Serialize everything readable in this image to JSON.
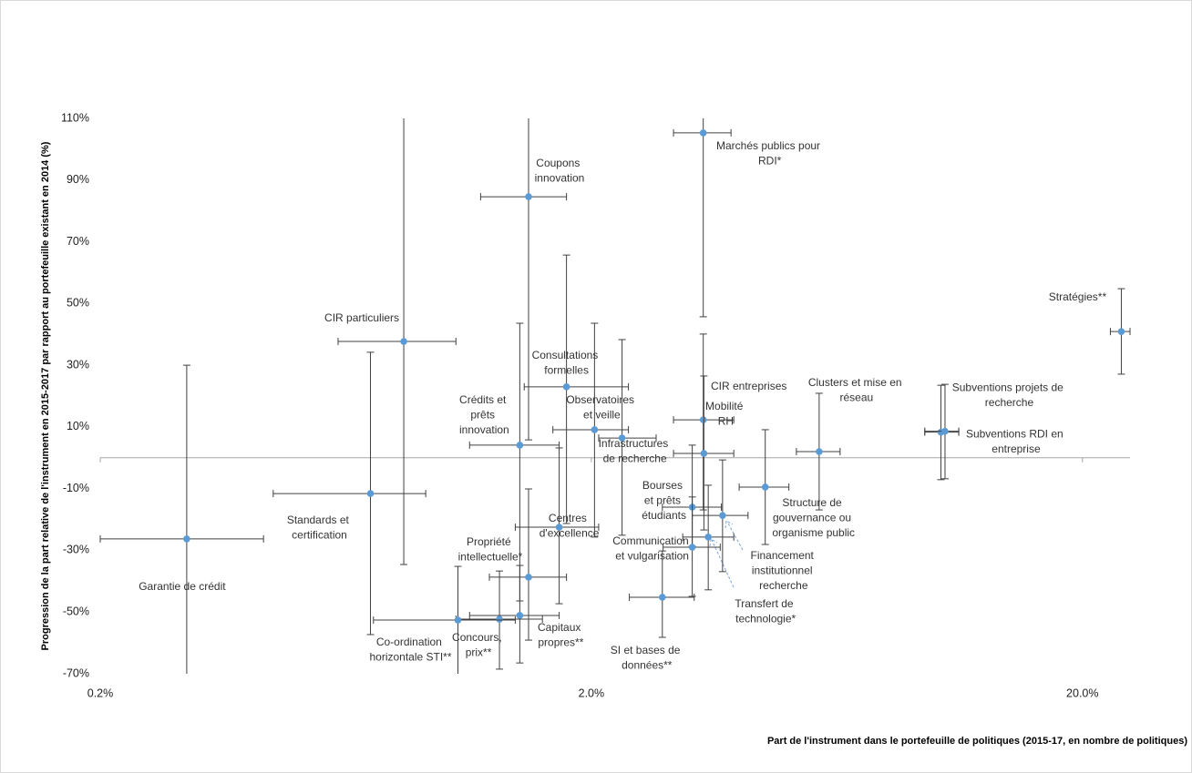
{
  "chart_data": {
    "type": "scatter",
    "x_label": "Part de l'instrument dans le portefeuille de politiques (2015-17, en nombre de politiques)",
    "y_label": "Progression de la part relative de l'instrument en 2015-2017 par rapport au portefeuille existant en 2014 (%)",
    "x_scale": "log",
    "xlim": [
      0.2,
      25
    ],
    "ylim": [
      -70,
      110
    ],
    "xticks": [
      {
        "value": 0.2,
        "label": "0.2%"
      },
      {
        "value": 2,
        "label": "2.0%"
      },
      {
        "value": 20,
        "label": "20.0%"
      }
    ],
    "yticks": [
      {
        "value": 110,
        "label": "110%"
      },
      {
        "value": 90,
        "label": "90%"
      },
      {
        "value": 70,
        "label": "70%"
      },
      {
        "value": 50,
        "label": "50%"
      },
      {
        "value": 30,
        "label": "30%"
      },
      {
        "value": 10,
        "label": "10%"
      },
      {
        "value": -10,
        "label": "-10%"
      },
      {
        "value": -30,
        "label": "-30%"
      },
      {
        "value": -50,
        "label": "-50%"
      },
      {
        "value": -70,
        "label": "-70%"
      }
    ],
    "x_axis_crossing": 0,
    "color": "#5b9bd5",
    "labels": [
      "Garantie de crédit",
      "Standards et certification",
      "CIR particuliers",
      "Coupons innovation",
      "Marchés publics pour RDI*",
      "Consultations formelles",
      "Crédits et prêts innovation",
      "Observatoires et veille",
      "Infrastructures de recherche",
      "CIR entreprises",
      "Mobilité RH",
      "Clusters et mise en réseau",
      "Structure de gouvernance ou organisme public",
      "Subventions projets de recherche",
      "Subventions RDI en entreprise",
      "Stratégies**",
      "Centres d'excellence",
      "Propriété intellectuelle*",
      "Capitaux propres**",
      "Concours, prix**",
      "Co-ordination horizontale STI**",
      "Bourses et prêts étudiants",
      "Financement institutionnel recherche",
      "Transfert de technologie*",
      "Communication et vulgarisation",
      "SI et bases de données**"
    ],
    "x": [
      0.3,
      0.71,
      0.83,
      1.49,
      3.38,
      1.78,
      1.43,
      2.03,
      2.31,
      3.38,
      3.39,
      5.82,
      4.52,
      10.3,
      10.5,
      24.0,
      1.72,
      1.49,
      1.43,
      1.3,
      1.07,
      3.21,
      3.7,
      3.46,
      3.21,
      2.79
    ],
    "values": [
      -26.3,
      -11.6,
      37.7,
      84.6,
      105.3,
      23.0,
      4.1,
      9.1,
      6.4,
      12.3,
      1.4,
      2.0,
      -9.5,
      8.3,
      8.6,
      40.9,
      -22.5,
      -38.7,
      -51.1,
      -52.3,
      -52.6,
      -16.0,
      -18.7,
      -25.7,
      -29.0,
      -45.2
    ],
    "x_low": [
      0.2,
      0.45,
      0.61,
      1.19,
      2.94,
      1.46,
      1.13,
      1.67,
      2.07,
      2.94,
      2.94,
      5.23,
      4.0,
      9.55,
      9.55,
      22.8,
      1.4,
      1.24,
      1.13,
      1.06,
      0.72,
      2.79,
      3.21,
      3.07,
      2.8,
      2.39
    ],
    "x_high": [
      0.43,
      0.92,
      1.06,
      1.78,
      3.85,
      2.38,
      1.72,
      2.38,
      2.71,
      3.9,
      3.9,
      6.42,
      5.05,
      11.2,
      11.2,
      25.0,
      2.07,
      1.78,
      1.72,
      1.59,
      1.4,
      3.68,
      4.17,
      3.9,
      3.66,
      3.24
    ],
    "y_low": [
      -70,
      -57.3,
      -34.6,
      5.8,
      45.7,
      -21.3,
      -46.4,
      -25.7,
      -25.1,
      -16.9,
      -23.4,
      -16.9,
      -28.1,
      -7.1,
      -6.8,
      27.1,
      -47.3,
      -59.1,
      -66.5,
      -68.5,
      -70,
      -28.7,
      -36.9,
      -42.8,
      -44.9,
      -58.2
    ],
    "y_high": [
      30,
      34.2,
      110,
      110,
      110,
      65.7,
      43.6,
      43.6,
      38.3,
      40.1,
      26.5,
      20.9,
      9.1,
      23.5,
      23.8,
      54.8,
      3.2,
      -10.1,
      -34.9,
      -36.7,
      -35.2,
      4.1,
      -0.7,
      -8.9,
      -12.7,
      -30.2
    ]
  }
}
